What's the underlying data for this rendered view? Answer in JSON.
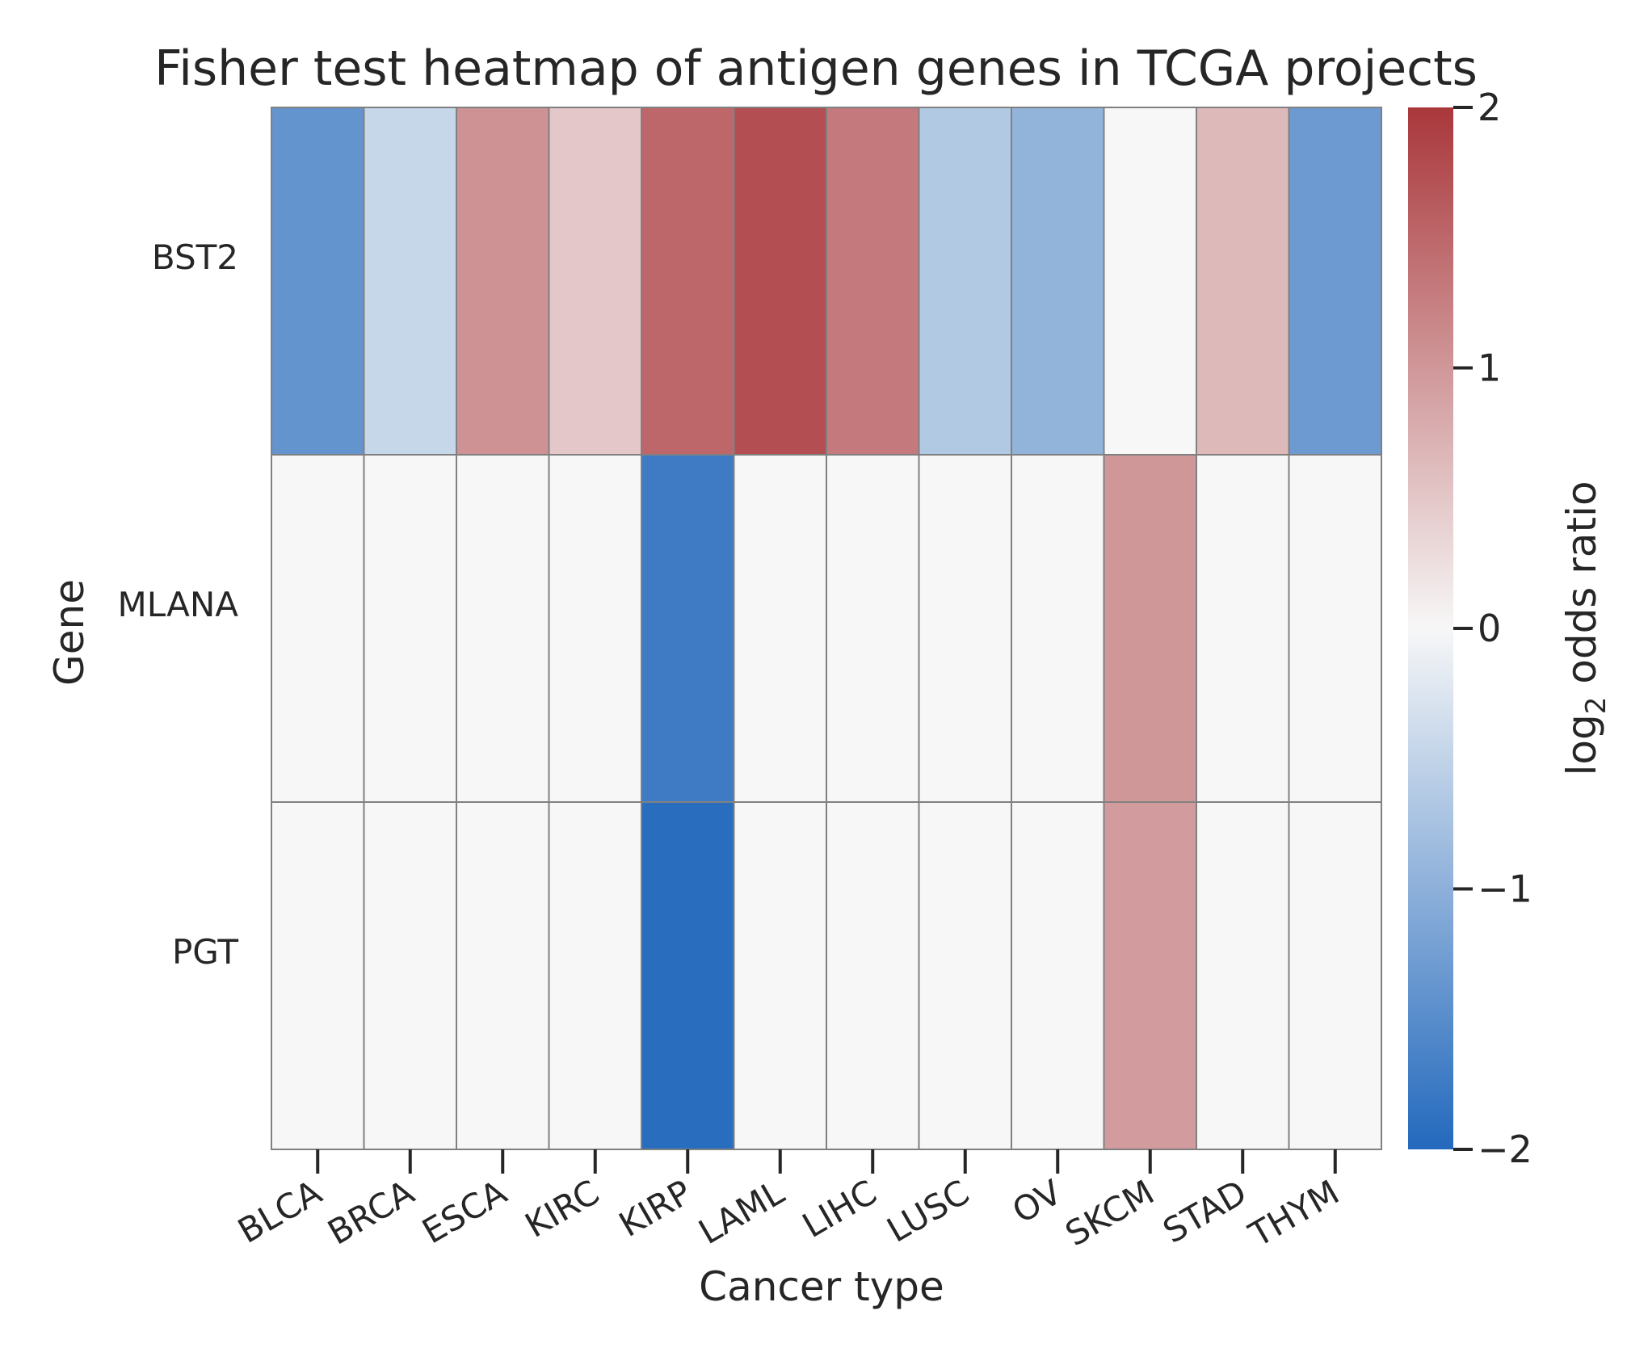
{
  "chart_data": {
    "type": "heatmap",
    "title": "Fisher test heatmap of antigen genes in TCGA projects",
    "xlabel": "Cancer type",
    "ylabel": "Gene",
    "x_categories": [
      "BLCA",
      "BRCA",
      "ESCA",
      "KIRC",
      "KIRP",
      "LAML",
      "LIHC",
      "LUSC",
      "OV",
      "SKCM",
      "STAD",
      "THYM"
    ],
    "y_categories": [
      "BST2",
      "MLANA",
      "PGT"
    ],
    "values": [
      [
        -1.4,
        -0.45,
        1.05,
        0.5,
        1.5,
        1.75,
        1.3,
        -0.65,
        -0.95,
        0.0,
        0.65,
        -1.3
      ],
      [
        0.0,
        0.0,
        0.0,
        0.0,
        -1.75,
        0.0,
        0.0,
        0.0,
        0.0,
        1.0,
        0.0,
        0.0
      ],
      [
        0.0,
        0.0,
        0.0,
        0.0,
        -1.95,
        0.0,
        0.0,
        0.0,
        0.0,
        0.95,
        0.0,
        0.0
      ]
    ],
    "colorbar": {
      "label_prefix": "log",
      "label_subscript": "2",
      "label_suffix": " odds ratio",
      "range": [
        -2,
        2
      ],
      "ticks": [
        2,
        1,
        0,
        -1,
        -2
      ],
      "tick_labels": [
        "2",
        "1",
        "0",
        "−1",
        "−2"
      ],
      "colormap": "vlag",
      "low_color": "#2369bd",
      "mid_color": "#f7f7f7",
      "high_color": "#a9373b"
    },
    "cell_edge_color": "#808080",
    "grid": false
  }
}
